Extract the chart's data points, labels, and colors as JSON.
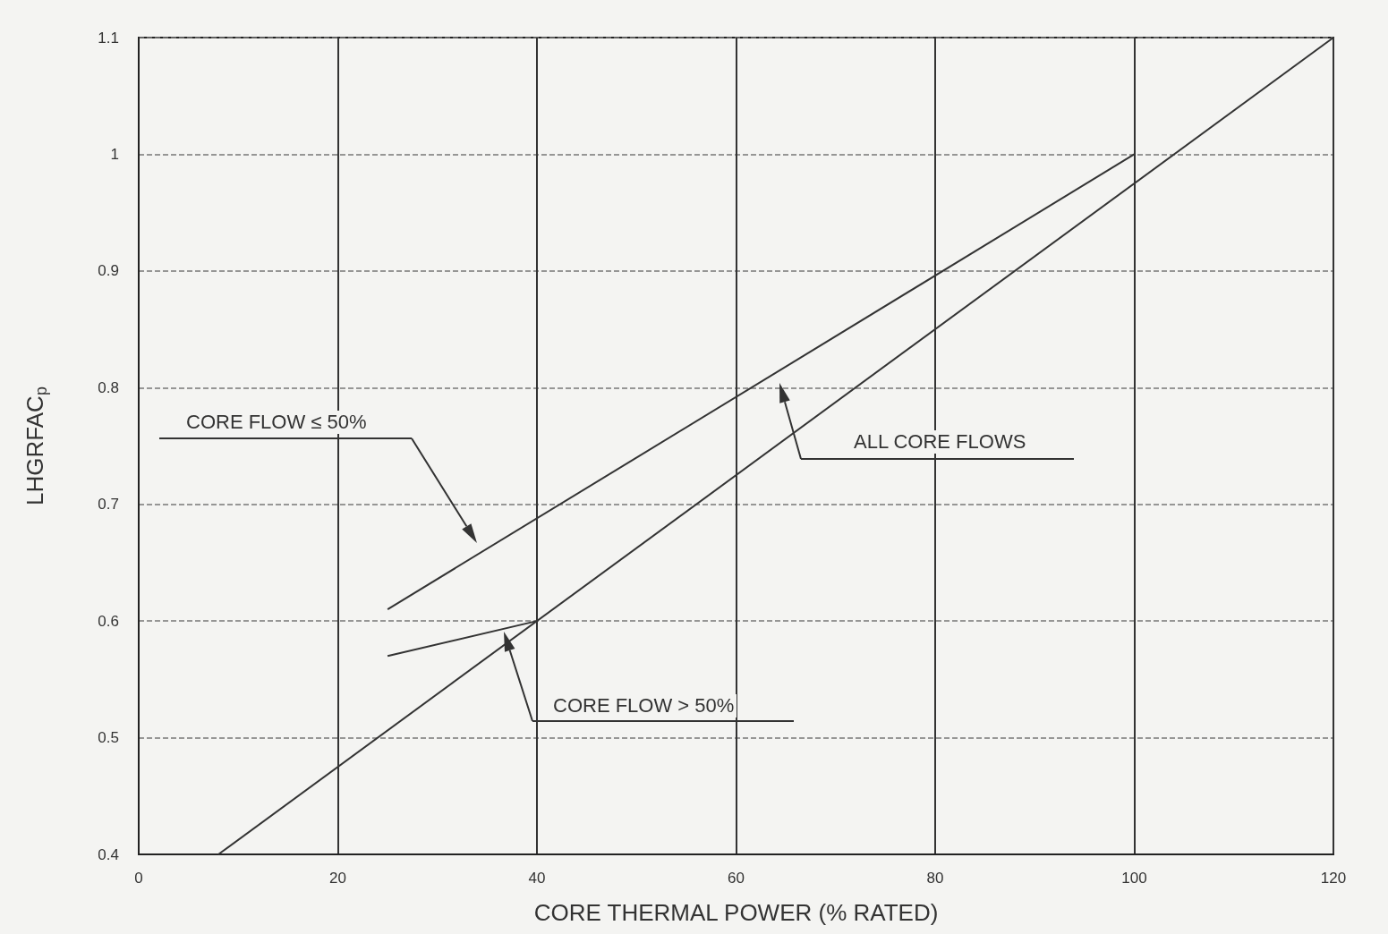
{
  "chart_data": {
    "type": "line",
    "xlabel": "CORE THERMAL POWER (% RATED)",
    "ylabel": "LHGRFAC$_{p}$",
    "xlim": [
      0,
      120
    ],
    "xticks": [
      0,
      20,
      40,
      60,
      80,
      100,
      120
    ],
    "ylim": [
      0.4,
      1.1
    ],
    "yticks": [
      0.4,
      0.5,
      0.6,
      0.7,
      0.8,
      0.9,
      1,
      1.1
    ],
    "grid": true,
    "marker": "none",
    "line_style": "solid",
    "series": [
      {
        "color": "#333333",
        "x": [
          25,
          100
        ],
        "values": [
          0.61,
          1.0
        ]
      },
      {
        "color": "#333333",
        "x": [
          8,
          120
        ],
        "values": [
          0.4,
          1.1
        ]
      },
      {
        "color": "#333333",
        "x": [
          25,
          40
        ],
        "values": [
          0.57,
          0.6
        ]
      }
    ],
    "annotations": [
      "CORE FLOW ≤ 50%",
      "ALL CORE FLOWS",
      "CORE FLOW > 50%"
    ]
  }
}
